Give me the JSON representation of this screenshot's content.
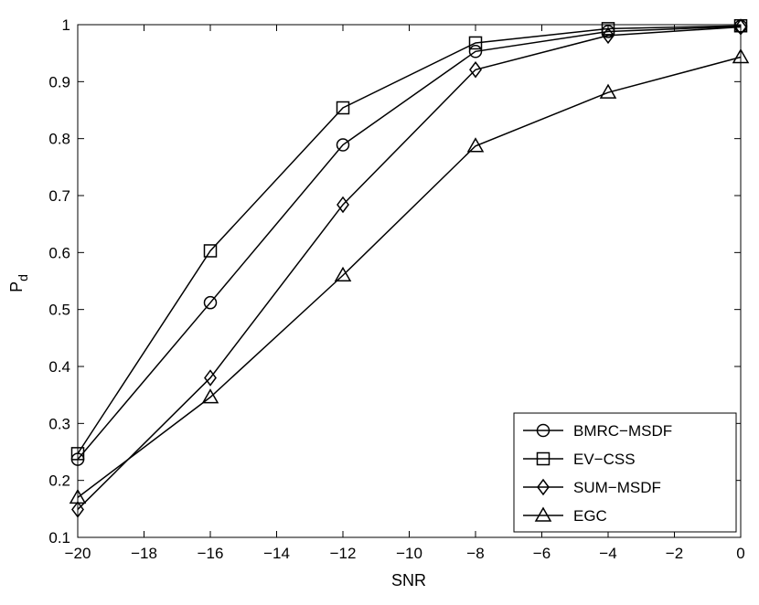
{
  "chart_data": {
    "type": "line",
    "title": "",
    "xlabel": "SNR",
    "ylabel": "P",
    "ylabel_subscript": "d",
    "xlim": [
      -20,
      0
    ],
    "ylim": [
      0.1,
      1
    ],
    "xticks": [
      -20,
      -18,
      -16,
      -14,
      -12,
      -10,
      -8,
      -6,
      -4,
      -2,
      0
    ],
    "yticks": [
      0.1,
      0.2,
      0.3,
      0.4,
      0.5,
      0.6,
      0.7,
      0.8,
      0.9,
      1
    ],
    "xtick_labels": [
      "−20",
      "−18",
      "−16",
      "−14",
      "−12",
      "−10",
      "−8",
      "−6",
      "−4",
      "−2",
      "0"
    ],
    "ytick_labels": [
      "0.1",
      "0.2",
      "0.3",
      "0.4",
      "0.5",
      "0.6",
      "0.7",
      "0.8",
      "0.9",
      "1"
    ],
    "grid": false,
    "legend_position": "bottom-right",
    "x": [
      -20,
      -16,
      -12,
      -8,
      -4,
      0
    ],
    "series": [
      {
        "name": "BMRC−MSDF",
        "marker": "circle",
        "values": [
          0.237,
          0.512,
          0.789,
          0.953,
          0.988,
          0.997
        ]
      },
      {
        "name": "EV−CSS",
        "marker": "square",
        "values": [
          0.247,
          0.603,
          0.854,
          0.968,
          0.993,
          0.998
        ]
      },
      {
        "name": "SUM−MSDF",
        "marker": "diamond",
        "values": [
          0.149,
          0.38,
          0.684,
          0.921,
          0.981,
          0.996
        ]
      },
      {
        "name": "EGC",
        "marker": "triangle",
        "values": [
          0.17,
          0.346,
          0.56,
          0.787,
          0.881,
          0.943
        ]
      }
    ],
    "colors": {
      "line": "#000000",
      "background": "#ffffff"
    }
  }
}
